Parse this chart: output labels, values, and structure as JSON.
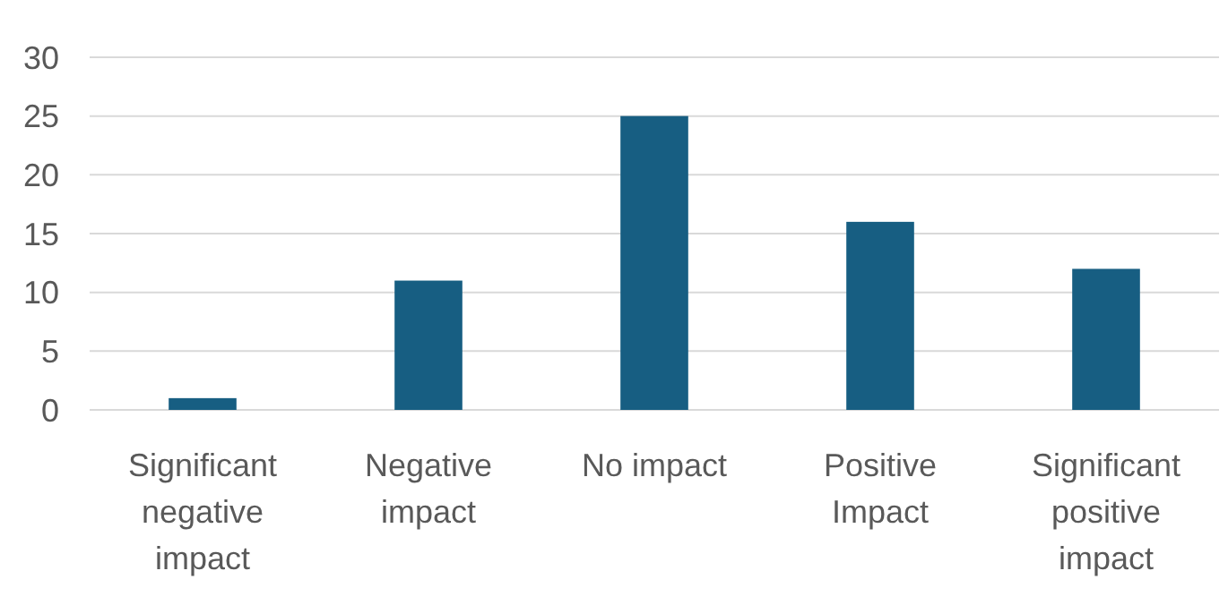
{
  "chart_data": {
    "type": "bar",
    "categories": [
      "Significant negative impact",
      "Negative impact",
      "No impact",
      "Positive Impact",
      "Significant positive impact"
    ],
    "values": [
      1,
      11,
      25,
      16,
      12
    ],
    "color": "#175e82",
    "ylim": [
      0,
      30
    ],
    "yticks": [
      0,
      5,
      10,
      15,
      20,
      25,
      30
    ],
    "grid": "y"
  }
}
